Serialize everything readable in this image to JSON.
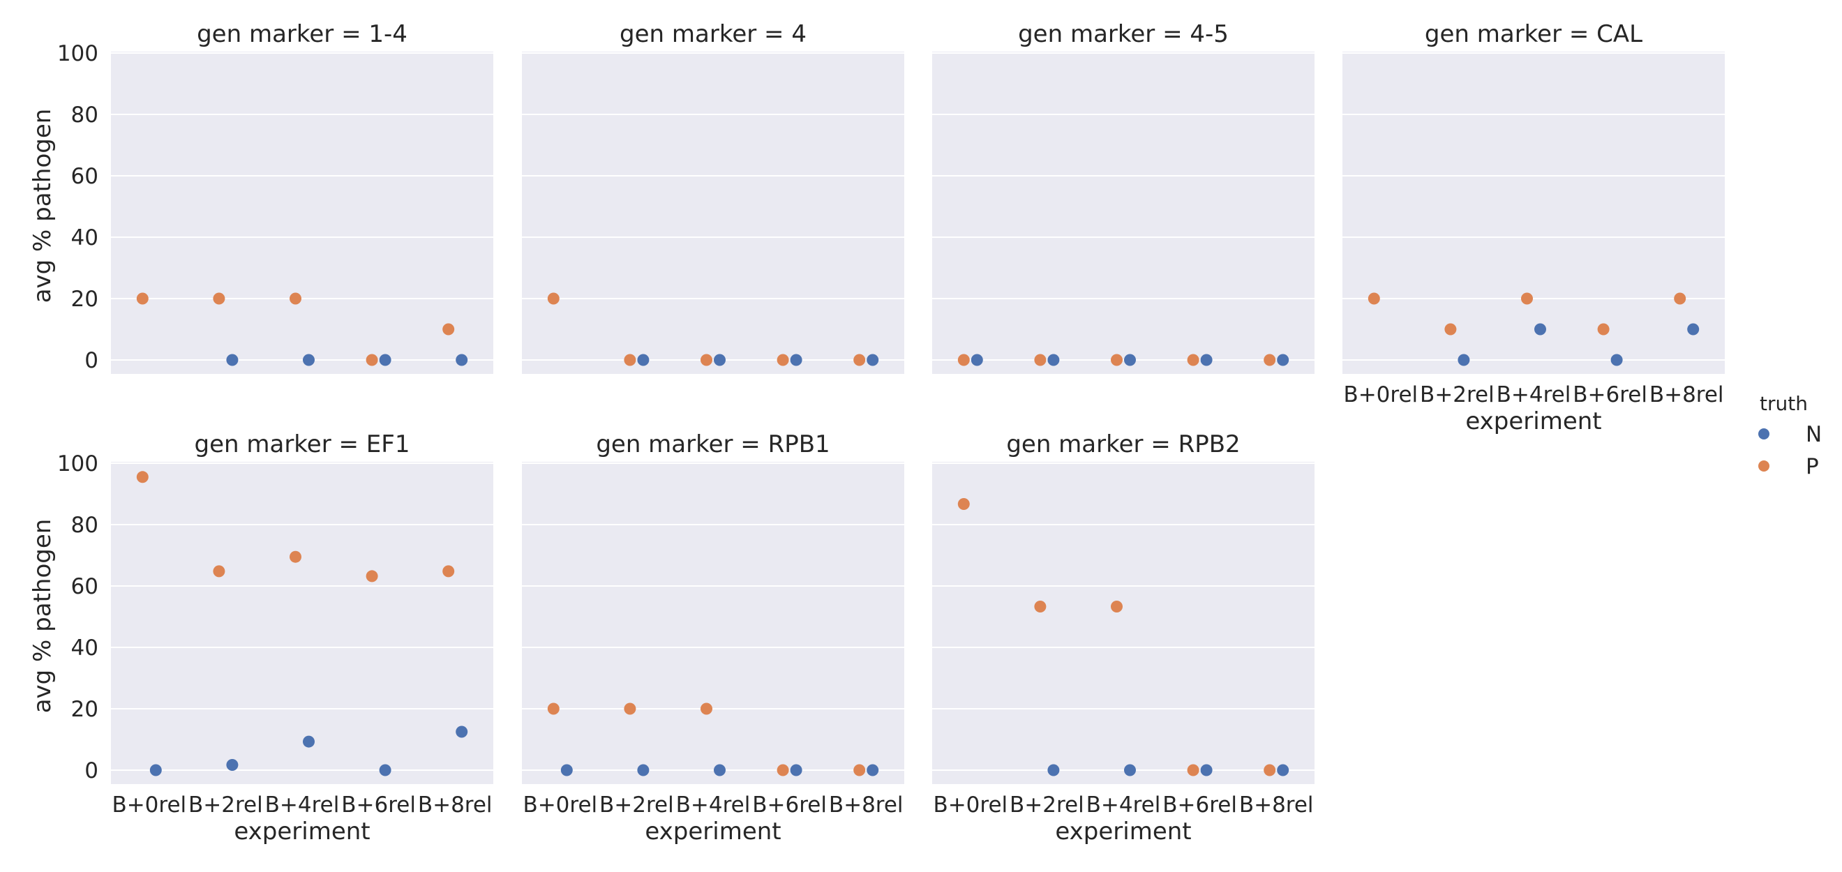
{
  "chart_data": {
    "type": "scatter",
    "facet_label_prefix": "gen marker = ",
    "categories": [
      "B+0rel",
      "B+2rel",
      "B+4rel",
      "B+6rel",
      "B+8rel"
    ],
    "xlabel": "experiment",
    "ylabel": "avg % pathogen",
    "ylim": [
      0,
      100
    ],
    "yticks": [
      0,
      20,
      40,
      60,
      80,
      100
    ],
    "grid": "on",
    "legend": {
      "title": "truth",
      "placement": "right",
      "entries": [
        {
          "name": "N",
          "color": "#4c72b0"
        },
        {
          "name": "P",
          "color": "#dd8452"
        }
      ]
    },
    "panels": [
      {
        "marker": "1-4",
        "series": [
          {
            "name": "N",
            "values": [
              null,
              0,
              0,
              0,
              0
            ]
          },
          {
            "name": "P",
            "values": [
              20,
              20,
              20,
              0,
              10
            ]
          }
        ]
      },
      {
        "marker": "4",
        "series": [
          {
            "name": "N",
            "values": [
              null,
              0,
              0,
              0,
              0
            ]
          },
          {
            "name": "P",
            "values": [
              20,
              0,
              0,
              0,
              0
            ]
          }
        ]
      },
      {
        "marker": "4-5",
        "series": [
          {
            "name": "N",
            "values": [
              0,
              0,
              0,
              0,
              0
            ]
          },
          {
            "name": "P",
            "values": [
              0,
              0,
              0,
              0,
              0
            ]
          }
        ]
      },
      {
        "marker": "CAL",
        "series": [
          {
            "name": "N",
            "values": [
              null,
              0,
              10,
              0,
              10
            ]
          },
          {
            "name": "P",
            "values": [
              20,
              10,
              20,
              10,
              20
            ]
          }
        ]
      },
      {
        "marker": "EF1",
        "series": [
          {
            "name": "N",
            "values": [
              0,
              1.7,
              9.3,
              0,
              12.5
            ]
          },
          {
            "name": "P",
            "values": [
              95.5,
              64.8,
              69.5,
              63.2,
              64.8
            ]
          }
        ]
      },
      {
        "marker": "RPB1",
        "series": [
          {
            "name": "N",
            "values": [
              0,
              0,
              0,
              0,
              0
            ]
          },
          {
            "name": "P",
            "values": [
              20,
              20,
              20,
              0,
              0
            ]
          }
        ]
      },
      {
        "marker": "RPB2",
        "series": [
          {
            "name": "N",
            "values": [
              null,
              0,
              0,
              0,
              0
            ]
          },
          {
            "name": "P",
            "values": [
              86.7,
              53.3,
              53.3,
              0,
              0
            ]
          }
        ]
      }
    ]
  }
}
